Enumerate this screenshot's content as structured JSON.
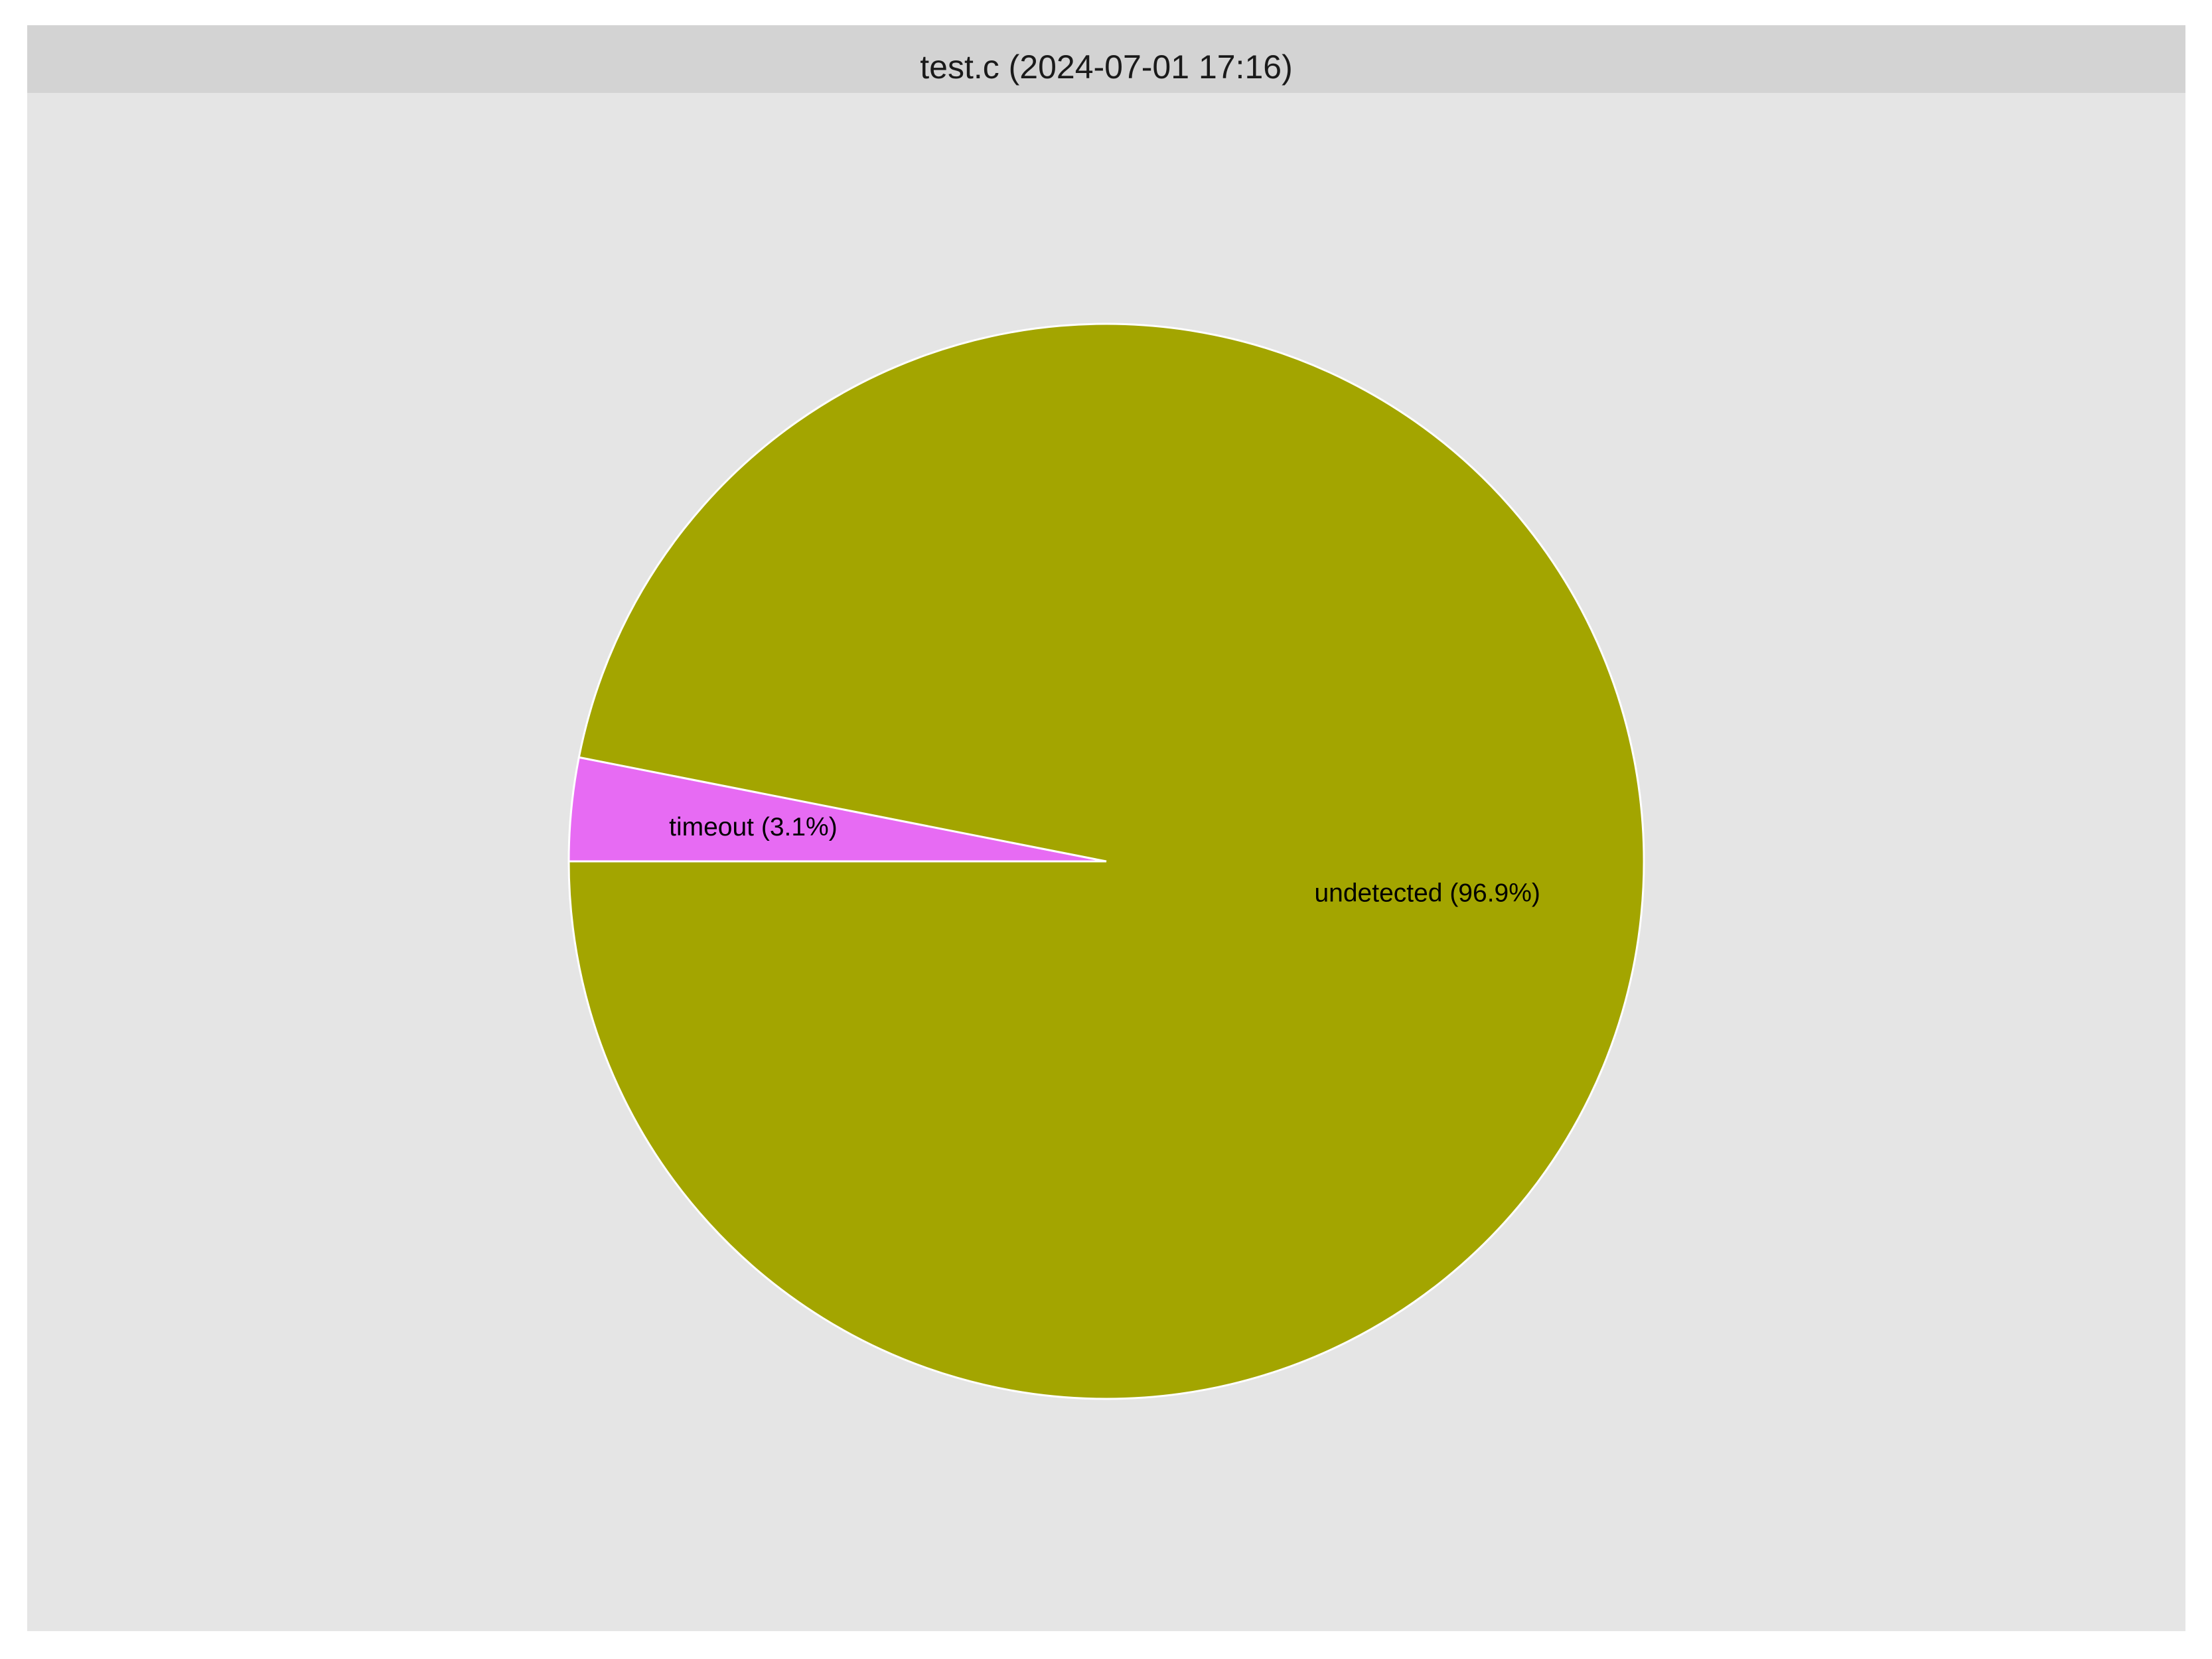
{
  "chart_data": {
    "type": "pie",
    "title": "test.c (2024-07-01 17:16)",
    "slices": [
      {
        "label": "timeout (3.1%)",
        "name": "timeout",
        "percent": 3.1,
        "color": "#E76BF3"
      },
      {
        "label": "undetected (96.9%)",
        "name": "undetected",
        "percent": 96.9,
        "color": "#A3A500"
      }
    ],
    "colors": {
      "panel_background": "#E5E5E5",
      "strip_background": "#D3D3D3",
      "slice_border": "#FFFFFF"
    }
  }
}
